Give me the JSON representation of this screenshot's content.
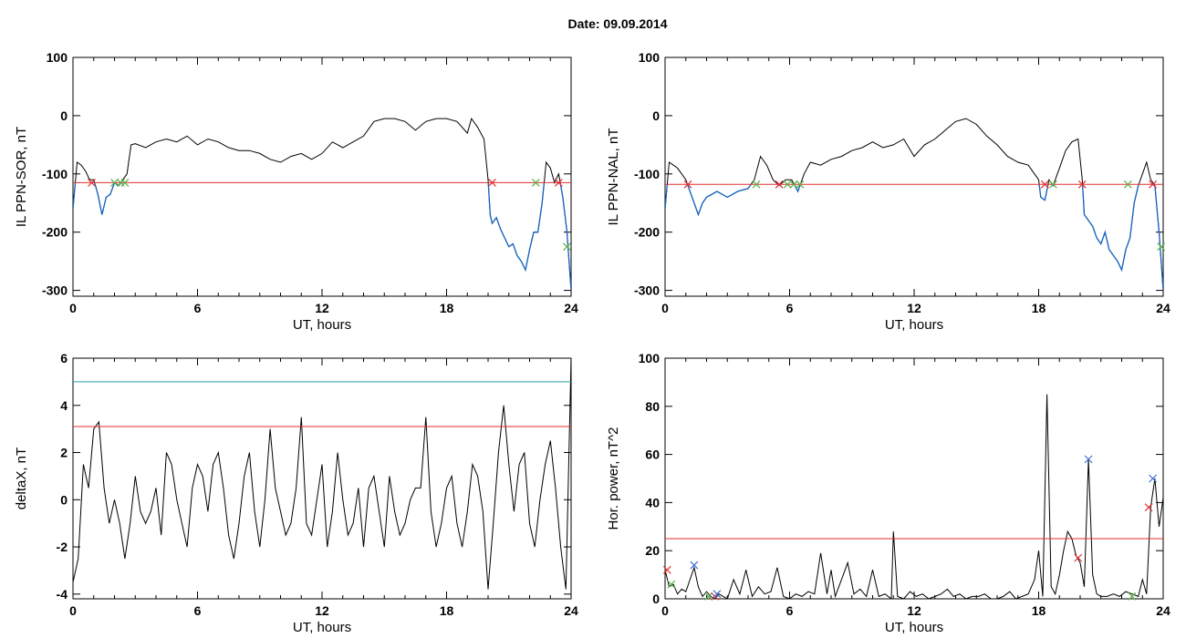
{
  "figure": {
    "title": "Date:  09.09.2014"
  },
  "colors": {
    "trace": "#000000",
    "below": "#1565c0",
    "threshold_red": "#e03030",
    "threshold_teal": "#2a9d9d",
    "marker_red": "#e03030",
    "marker_green": "#5ab04a",
    "marker_blue": "#3a6fd8"
  },
  "chart_data": [
    {
      "id": "sor",
      "type": "line",
      "xlabel": "UT, hours",
      "ylabel": "IL PPN-SOR, nT",
      "xlim": [
        0,
        24
      ],
      "ylim": [
        -310,
        100
      ],
      "xticks": [
        0,
        6,
        12,
        18,
        24
      ],
      "yticks": [
        100,
        0,
        -100,
        -200,
        -300
      ],
      "threshold": {
        "value": -115,
        "color": "red"
      },
      "series": [
        {
          "x": [
            0,
            0.2,
            0.4,
            0.6,
            0.8,
            1.0,
            1.2,
            1.4,
            1.6,
            1.8,
            2.0,
            2.2,
            2.4,
            2.6,
            2.8,
            3.0,
            3.5,
            4,
            4.5,
            5,
            5.5,
            6,
            6.5,
            7,
            7.5,
            8,
            8.5,
            9,
            9.5,
            10,
            10.5,
            11,
            11.5,
            12,
            12.5,
            13,
            13.5,
            14,
            14.5,
            15,
            15.5,
            16,
            16.5,
            17,
            17.5,
            18,
            18.5,
            19,
            19.2,
            19.5,
            19.8,
            20.0,
            20.1,
            20.2,
            20.4,
            20.6,
            20.8,
            21.0,
            21.2,
            21.4,
            21.6,
            21.8,
            22.0,
            22.2,
            22.4,
            22.6,
            22.8,
            23.0,
            23.2,
            23.4,
            23.6,
            23.8,
            24.0
          ],
          "y": [
            -160,
            -80,
            -85,
            -95,
            -110,
            -110,
            -135,
            -170,
            -140,
            -135,
            -115,
            -120,
            -110,
            -100,
            -50,
            -48,
            -55,
            -45,
            -40,
            -45,
            -35,
            -50,
            -40,
            -45,
            -55,
            -60,
            -60,
            -65,
            -75,
            -80,
            -70,
            -65,
            -75,
            -65,
            -45,
            -55,
            -45,
            -35,
            -10,
            -5,
            -5,
            -10,
            -25,
            -10,
            -5,
            -5,
            -10,
            -30,
            -5,
            -20,
            -40,
            -110,
            -170,
            -185,
            -175,
            -195,
            -210,
            -225,
            -220,
            -240,
            -250,
            -265,
            -230,
            -200,
            -200,
            -150,
            -80,
            -90,
            -115,
            -100,
            -140,
            -200,
            -300
          ]
        }
      ],
      "markers": [
        {
          "x": 0.9,
          "y": -115,
          "color": "red"
        },
        {
          "x": 2.0,
          "y": -115,
          "color": "green"
        },
        {
          "x": 2.3,
          "y": -115,
          "color": "green"
        },
        {
          "x": 2.5,
          "y": -115,
          "color": "green"
        },
        {
          "x": 20.2,
          "y": -115,
          "color": "red"
        },
        {
          "x": 22.3,
          "y": -115,
          "color": "green"
        },
        {
          "x": 23.4,
          "y": -115,
          "color": "red"
        },
        {
          "x": 23.8,
          "y": -225,
          "color": "green"
        }
      ]
    },
    {
      "id": "nal",
      "type": "line",
      "xlabel": "UT, hours",
      "ylabel": "IL PPN-NAL, nT",
      "xlim": [
        0,
        24
      ],
      "ylim": [
        -310,
        100
      ],
      "xticks": [
        0,
        6,
        12,
        18,
        24
      ],
      "yticks": [
        100,
        0,
        -100,
        -200,
        -300
      ],
      "threshold": {
        "value": -118,
        "color": "red"
      },
      "series": [
        {
          "x": [
            0,
            0.2,
            0.4,
            0.6,
            0.8,
            1.0,
            1.2,
            1.4,
            1.6,
            1.8,
            2.0,
            2.5,
            3.0,
            3.5,
            4.0,
            4.3,
            4.6,
            4.9,
            5.2,
            5.5,
            5.8,
            6.1,
            6.4,
            6.7,
            7.0,
            7.5,
            8,
            8.5,
            9,
            9.5,
            10,
            10.5,
            11,
            11.5,
            12,
            12.5,
            13,
            13.5,
            14,
            14.5,
            15,
            15.5,
            16,
            16.5,
            17,
            17.5,
            18,
            18.1,
            18.3,
            18.5,
            18.7,
            19.0,
            19.3,
            19.6,
            19.9,
            20.1,
            20.2,
            20.4,
            20.6,
            20.8,
            21.0,
            21.2,
            21.4,
            21.6,
            21.8,
            22.0,
            22.2,
            22.4,
            22.6,
            22.8,
            23.0,
            23.2,
            23.4,
            23.6,
            23.8,
            24.0
          ],
          "y": [
            -160,
            -80,
            -85,
            -90,
            -100,
            -110,
            -130,
            -150,
            -170,
            -150,
            -140,
            -130,
            -140,
            -130,
            -125,
            -110,
            -70,
            -85,
            -110,
            -120,
            -110,
            -110,
            -130,
            -100,
            -80,
            -85,
            -75,
            -70,
            -60,
            -55,
            -45,
            -55,
            -50,
            -40,
            -70,
            -50,
            -40,
            -25,
            -10,
            -5,
            -15,
            -35,
            -50,
            -70,
            -80,
            -85,
            -110,
            -140,
            -145,
            -110,
            -120,
            -90,
            -60,
            -45,
            -40,
            -110,
            -170,
            -180,
            -190,
            -210,
            -220,
            -200,
            -230,
            -240,
            -250,
            -265,
            -230,
            -210,
            -150,
            -120,
            -100,
            -80,
            -110,
            -120,
            -200,
            -300
          ]
        }
      ],
      "markers": [
        {
          "x": 1.1,
          "y": -118,
          "color": "red"
        },
        {
          "x": 4.4,
          "y": -118,
          "color": "green"
        },
        {
          "x": 5.5,
          "y": -118,
          "color": "red"
        },
        {
          "x": 5.9,
          "y": -118,
          "color": "green"
        },
        {
          "x": 6.2,
          "y": -118,
          "color": "green"
        },
        {
          "x": 6.5,
          "y": -118,
          "color": "green"
        },
        {
          "x": 18.3,
          "y": -118,
          "color": "red"
        },
        {
          "x": 18.7,
          "y": -118,
          "color": "green"
        },
        {
          "x": 20.1,
          "y": -118,
          "color": "red"
        },
        {
          "x": 22.3,
          "y": -118,
          "color": "green"
        },
        {
          "x": 23.5,
          "y": -118,
          "color": "red"
        },
        {
          "x": 23.9,
          "y": -225,
          "color": "green"
        }
      ]
    },
    {
      "id": "deltax",
      "type": "line",
      "xlabel": "UT, hours",
      "ylabel": "deltaX, nT",
      "xlim": [
        0,
        24
      ],
      "ylim": [
        -4.2,
        6
      ],
      "xticks": [
        0,
        6,
        12,
        18,
        24
      ],
      "yticks": [
        6,
        4,
        2,
        0,
        -2,
        -4
      ],
      "thresholds": [
        {
          "value": 5.0,
          "color": "teal"
        },
        {
          "value": 3.1,
          "color": "red"
        }
      ],
      "series": [
        {
          "x": [
            0,
            0.25,
            0.5,
            0.75,
            1.0,
            1.25,
            1.5,
            1.75,
            2.0,
            2.25,
            2.5,
            2.75,
            3.0,
            3.25,
            3.5,
            3.75,
            4.0,
            4.25,
            4.5,
            4.75,
            5.0,
            5.25,
            5.5,
            5.75,
            6.0,
            6.25,
            6.5,
            6.75,
            7.0,
            7.25,
            7.5,
            7.75,
            8.0,
            8.25,
            8.5,
            8.75,
            9.0,
            9.25,
            9.5,
            9.75,
            10.0,
            10.25,
            10.5,
            10.75,
            11.0,
            11.25,
            11.5,
            11.75,
            12.0,
            12.25,
            12.5,
            12.75,
            13.0,
            13.25,
            13.5,
            13.75,
            14.0,
            14.25,
            14.5,
            14.75,
            15.0,
            15.25,
            15.5,
            15.75,
            16.0,
            16.25,
            16.5,
            16.75,
            17.0,
            17.25,
            17.5,
            17.75,
            18.0,
            18.25,
            18.5,
            18.75,
            19.0,
            19.25,
            19.5,
            19.75,
            20.0,
            20.25,
            20.5,
            20.75,
            21.0,
            21.25,
            21.5,
            21.75,
            22.0,
            22.25,
            22.5,
            22.75,
            23.0,
            23.25,
            23.5,
            23.75,
            24.0
          ],
          "y": [
            -3.5,
            -2.5,
            1.5,
            0.5,
            3.0,
            3.3,
            0.5,
            -1.0,
            0.0,
            -1.0,
            -2.5,
            -1.0,
            1.0,
            -0.5,
            -1.0,
            -0.5,
            0.5,
            -1.5,
            2.0,
            1.5,
            0.0,
            -1.0,
            -2.0,
            0.5,
            1.5,
            1.0,
            -0.5,
            1.5,
            2.0,
            0.5,
            -1.5,
            -2.5,
            -1.0,
            1.0,
            2.0,
            -0.5,
            -2.0,
            0.0,
            3.0,
            0.5,
            -0.5,
            -1.5,
            -1.0,
            0.5,
            3.5,
            -1.0,
            -1.5,
            0.0,
            1.5,
            -2.0,
            -0.5,
            2.0,
            0.0,
            -1.5,
            -1.0,
            0.5,
            -2.0,
            0.5,
            1.0,
            -0.5,
            -2.0,
            1.0,
            -0.5,
            -1.5,
            -1.0,
            0.0,
            0.5,
            0.5,
            3.5,
            -0.5,
            -2.0,
            -1.0,
            0.5,
            1.0,
            -1.0,
            -2.0,
            -0.5,
            1.5,
            1.0,
            -0.5,
            -3.8,
            -1.0,
            2.0,
            4.0,
            1.5,
            -0.5,
            1.5,
            2.0,
            -1.0,
            -2.0,
            0.0,
            1.5,
            2.5,
            0.5,
            -2.0,
            -3.8,
            6.0
          ]
        }
      ]
    },
    {
      "id": "power",
      "type": "line",
      "xlabel": "UT, hours",
      "ylabel": "Hor. power, nT^2",
      "xlim": [
        0,
        24
      ],
      "ylim": [
        0,
        100
      ],
      "xticks": [
        0,
        6,
        12,
        18,
        24
      ],
      "yticks": [
        100,
        80,
        60,
        40,
        20,
        0
      ],
      "threshold": {
        "value": 25,
        "color": "red"
      },
      "series": [
        {
          "x": [
            0,
            0.2,
            0.4,
            0.6,
            0.8,
            1.0,
            1.2,
            1.4,
            1.6,
            1.8,
            2.0,
            2.2,
            2.4,
            2.6,
            2.8,
            3.0,
            3.3,
            3.6,
            3.9,
            4.2,
            4.5,
            4.8,
            5.1,
            5.4,
            5.7,
            6.0,
            6.3,
            6.6,
            6.9,
            7.2,
            7.5,
            7.8,
            8.0,
            8.2,
            8.5,
            8.8,
            9.1,
            9.4,
            9.7,
            10.0,
            10.3,
            10.6,
            10.9,
            11.0,
            11.2,
            11.5,
            11.8,
            12.1,
            12.4,
            12.7,
            13.0,
            13.3,
            13.6,
            13.9,
            14.2,
            14.5,
            14.8,
            15.1,
            15.4,
            15.7,
            16.0,
            16.3,
            16.6,
            16.9,
            17.2,
            17.5,
            17.8,
            18.0,
            18.2,
            18.4,
            18.6,
            18.8,
            19.0,
            19.2,
            19.4,
            19.6,
            19.8,
            20.0,
            20.2,
            20.4,
            20.6,
            20.8,
            21.0,
            21.3,
            21.6,
            21.9,
            22.2,
            22.5,
            22.8,
            23.0,
            23.2,
            23.4,
            23.6,
            23.8,
            24.0
          ],
          "y": [
            12,
            5,
            6,
            2,
            4,
            3,
            8,
            13,
            5,
            1,
            3,
            1,
            0,
            2,
            1,
            0,
            8,
            2,
            12,
            1,
            5,
            2,
            3,
            13,
            1,
            0,
            2,
            1,
            3,
            2,
            19,
            2,
            12,
            1,
            8,
            15,
            2,
            4,
            1,
            12,
            1,
            2,
            0,
            28,
            1,
            0,
            3,
            1,
            2,
            0,
            1,
            2,
            4,
            1,
            2,
            0,
            1,
            1,
            2,
            0,
            0,
            1,
            3,
            0,
            1,
            2,
            8,
            20,
            1,
            85,
            5,
            2,
            10,
            20,
            28,
            25,
            18,
            15,
            5,
            58,
            10,
            2,
            1,
            1,
            2,
            1,
            3,
            2,
            1,
            8,
            2,
            38,
            50,
            30,
            42
          ]
        }
      ],
      "markers": [
        {
          "x": 0.1,
          "y": 12,
          "color": "red"
        },
        {
          "x": 0.3,
          "y": 6,
          "color": "green"
        },
        {
          "x": 1.4,
          "y": 14,
          "color": "blue"
        },
        {
          "x": 2.1,
          "y": 1,
          "color": "green"
        },
        {
          "x": 2.4,
          "y": 1,
          "color": "red"
        },
        {
          "x": 2.5,
          "y": 2,
          "color": "blue"
        },
        {
          "x": 19.9,
          "y": 17,
          "color": "red"
        },
        {
          "x": 20.4,
          "y": 58,
          "color": "blue"
        },
        {
          "x": 22.5,
          "y": 1,
          "color": "green"
        },
        {
          "x": 23.3,
          "y": 38,
          "color": "red"
        },
        {
          "x": 23.5,
          "y": 50,
          "color": "blue"
        }
      ]
    }
  ]
}
